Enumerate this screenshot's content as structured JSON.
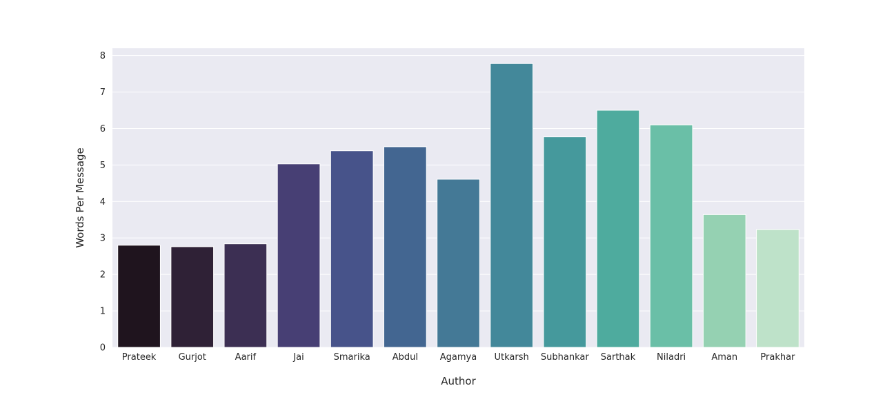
{
  "chart_data": {
    "type": "bar",
    "title": "",
    "xlabel": "Author",
    "ylabel": "Words Per Message",
    "categories": [
      "Prateek",
      "Gurjot",
      "Aarif",
      "Jai",
      "Smarika",
      "Abdul",
      "Agamya",
      "Utkarsh",
      "Subhankar",
      "Sarthak",
      "Niladri",
      "Aman",
      "Prakhar"
    ],
    "values": [
      2.8,
      2.76,
      2.84,
      5.03,
      5.39,
      5.5,
      4.61,
      7.78,
      5.77,
      6.5,
      6.1,
      3.64,
      3.23
    ],
    "colors": [
      "#1f141e",
      "#2f2136",
      "#3c2f53",
      "#473f74",
      "#47538a",
      "#436691",
      "#447996",
      "#43889a",
      "#45999c",
      "#4eab9e",
      "#6abfa7",
      "#95d1b2",
      "#bee2c9"
    ],
    "ylim": [
      0,
      8.2
    ],
    "yticks": [
      0,
      1,
      2,
      3,
      4,
      5,
      6,
      7,
      8
    ],
    "grid": true,
    "plot_background": "#eaeaf2",
    "grid_color": "#ffffff"
  }
}
